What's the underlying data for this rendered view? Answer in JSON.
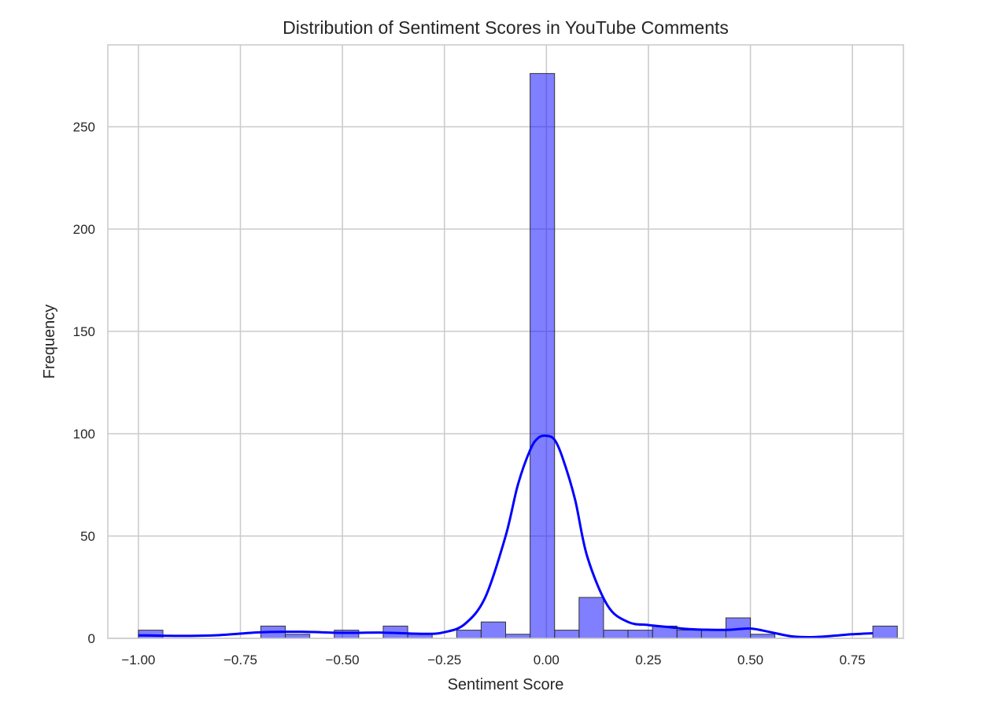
{
  "chart_data": {
    "type": "bar",
    "title": "Distribution of Sentiment Scores in YouTube Comments",
    "xlabel": "Sentiment Score",
    "ylabel": "Frequency",
    "xlim": [
      -1.075,
      0.875
    ],
    "ylim": [
      0,
      290
    ],
    "x_ticks": [
      -1.0,
      -0.75,
      -0.5,
      -0.25,
      0.0,
      0.25,
      0.5,
      0.75
    ],
    "x_tick_labels": [
      "−1.00",
      "−0.75",
      "−0.50",
      "−0.25",
      "0.00",
      "0.25",
      "0.50",
      "0.75"
    ],
    "y_ticks": [
      0,
      50,
      100,
      150,
      200,
      250
    ],
    "y_tick_labels": [
      "0",
      "50",
      "100",
      "150",
      "200",
      "250"
    ],
    "grid": true,
    "bar_color": "#0000ff",
    "bar_opacity": 0.5,
    "bar_edge_color": "#333333",
    "kde_color": "#0000ff",
    "bins": {
      "start": -1.0,
      "width": 0.06,
      "counts": [
        4,
        0,
        0,
        0,
        0,
        6,
        2,
        0,
        4,
        0,
        6,
        2,
        0,
        4,
        8,
        2,
        276,
        4,
        20,
        4,
        4,
        6,
        4,
        4,
        10,
        2,
        0,
        0,
        0,
        0,
        6
      ]
    },
    "kde": {
      "x": [
        -1.0,
        -0.9,
        -0.8,
        -0.7,
        -0.6,
        -0.5,
        -0.4,
        -0.3,
        -0.25,
        -0.2,
        -0.15,
        -0.1,
        -0.07,
        -0.04,
        -0.02,
        0.0,
        0.02,
        0.04,
        0.07,
        0.1,
        0.15,
        0.2,
        0.25,
        0.3,
        0.35,
        0.4,
        0.45,
        0.5,
        0.55,
        0.6,
        0.65,
        0.7,
        0.75,
        0.8
      ],
      "y": [
        1.5,
        1.2,
        1.6,
        3.0,
        3.2,
        2.7,
        2.8,
        2.2,
        3.0,
        7.0,
        20,
        50,
        75,
        92,
        98,
        99,
        97,
        88,
        68,
        40,
        16,
        8,
        6.5,
        5.5,
        4.5,
        4.2,
        4.2,
        4.8,
        3.0,
        1.0,
        0.6,
        1.2,
        2.0,
        2.5
      ]
    }
  }
}
